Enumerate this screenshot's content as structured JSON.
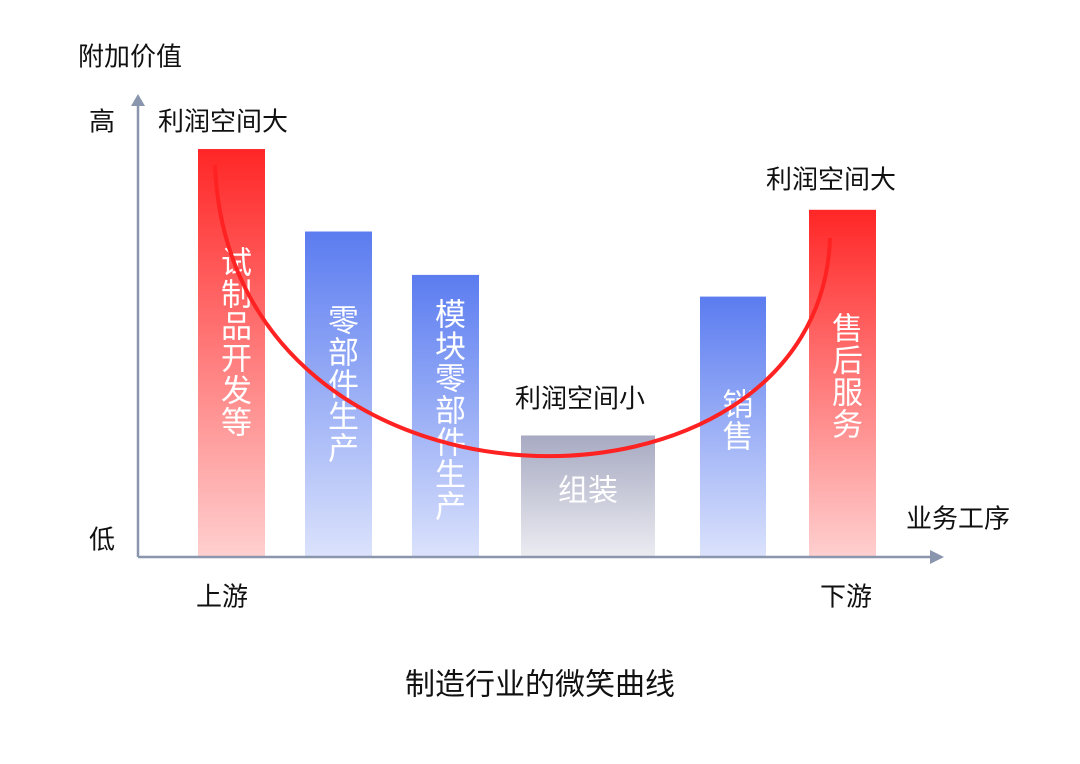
{
  "chart_data": {
    "type": "bar",
    "title": "制造行业的微笑曲线",
    "y_label": "附加价值",
    "x_label": "业务工序",
    "categories": [
      "试制品开发等",
      "零部件生产",
      "模块零部件生产",
      "组装",
      "销售",
      "售后服务"
    ],
    "values": [
      94,
      75,
      65,
      28,
      60,
      80
    ],
    "colors": [
      "#ff2626",
      "#5b7cf0",
      "#5b7cf0",
      "#a7aac2",
      "#5b7cf0",
      "#ff2626"
    ],
    "ylim": [
      0,
      100
    ],
    "yticks": [
      {
        "value": 0,
        "label": "低"
      },
      {
        "value": 100,
        "label": "高"
      }
    ],
    "x_ends": [
      "上游",
      "下游"
    ],
    "annotations": [
      "利润空间大",
      "利润空间小",
      "利润空间大"
    ]
  }
}
